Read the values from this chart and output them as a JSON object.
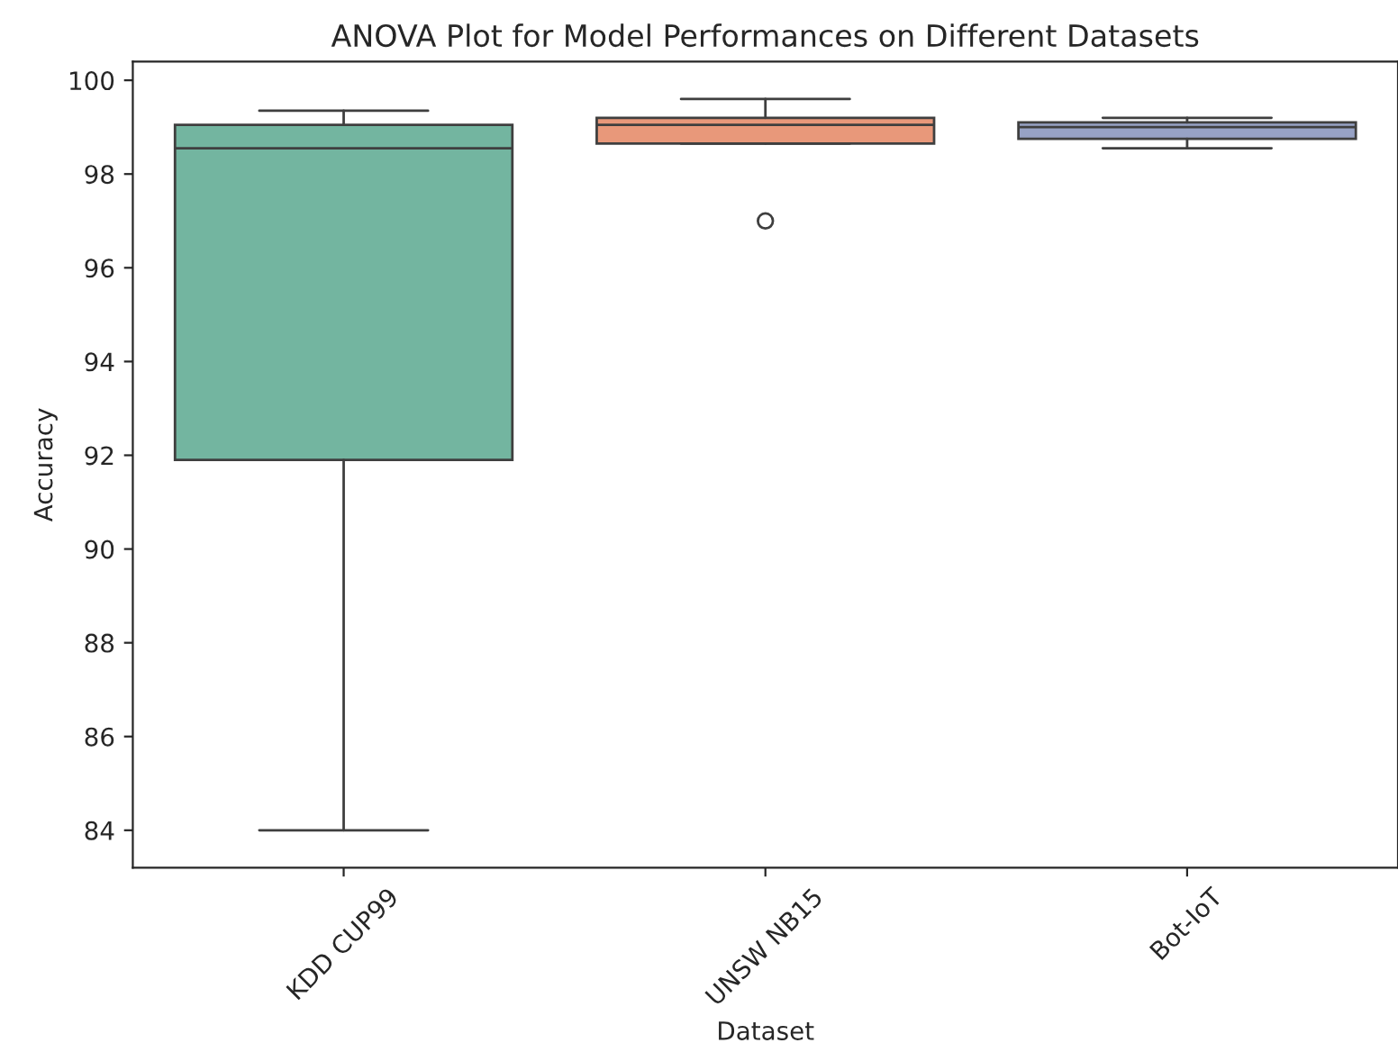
{
  "chart_data": {
    "type": "box",
    "title": "ANOVA Plot for Model Performances on Different Datasets",
    "xlabel": "Dataset",
    "ylabel": "Accuracy",
    "categories": [
      "KDD CUP99",
      "UNSW NB15",
      "Bot-IoT"
    ],
    "colors": [
      "#73b5a0",
      "#e8987a",
      "#97a2c5"
    ],
    "boxes": [
      {
        "low": 84.0,
        "q1": 91.9,
        "median": 98.55,
        "q3": 99.05,
        "high": 99.35
      },
      {
        "low": 98.65,
        "q1": 98.65,
        "median": 99.05,
        "q3": 99.2,
        "high": 99.6,
        "outliers": [
          97.0
        ]
      },
      {
        "low": 98.55,
        "q1": 98.75,
        "median": 99.0,
        "q3": 99.1,
        "high": 99.2
      }
    ],
    "ylim": [
      83.2,
      100.4
    ],
    "yticks": [
      84,
      86,
      88,
      90,
      92,
      94,
      96,
      98,
      100
    ],
    "grid": false
  }
}
